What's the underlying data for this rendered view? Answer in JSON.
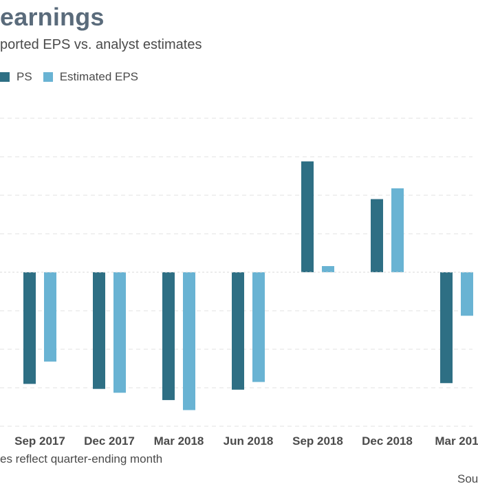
{
  "header": {
    "title": "earnings",
    "subtitle": "ported EPS vs. analyst estimates"
  },
  "legend": {
    "items": [
      {
        "label": "PS",
        "color": "#2e6f84"
      },
      {
        "label": "Estimated EPS",
        "color": "#69b3d3"
      }
    ]
  },
  "footer": {
    "note": "es reflect quarter-ending month",
    "source": "Sou"
  },
  "chart_data": {
    "type": "bar",
    "categories": [
      "Sep 2017",
      "Dec 2017",
      "Mar 2018",
      "Jun 2018",
      "Sep 2018",
      "Dec 2018",
      "Mar 201"
    ],
    "series": [
      {
        "name": "PS",
        "color": "#2e6f84",
        "values": [
          -2.9,
          -3.03,
          -3.32,
          -3.05,
          2.88,
          1.9,
          -2.88
        ]
      },
      {
        "name": "Estimated EPS",
        "color": "#69b3d3",
        "values": [
          -2.32,
          -3.13,
          -3.58,
          -2.85,
          0.16,
          2.18,
          -1.13
        ]
      }
    ],
    "ylim": [
      -4,
      4
    ],
    "grid": true,
    "legend_position": "top-left"
  }
}
